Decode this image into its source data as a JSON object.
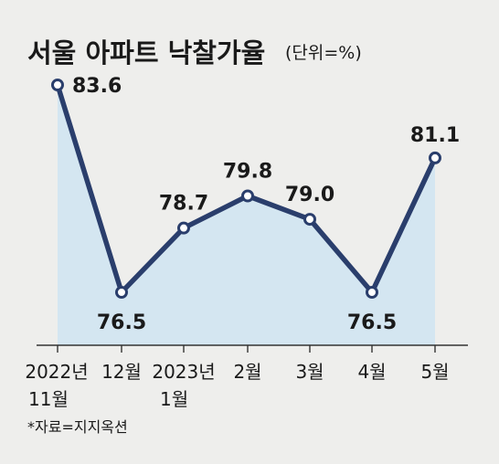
{
  "chart_data": {
    "type": "area",
    "title": "서울 아파트 낙찰가율",
    "unit": "(단위=%)",
    "categories": [
      [
        "2022년",
        "11월"
      ],
      [
        "12월"
      ],
      [
        "2023년",
        "1월"
      ],
      [
        "2월"
      ],
      [
        "3월"
      ],
      [
        "4월"
      ],
      [
        "5월"
      ]
    ],
    "values": [
      83.6,
      76.5,
      78.7,
      79.8,
      79.0,
      76.5,
      81.1
    ],
    "value_labels": [
      "83.6",
      "76.5",
      "78.7",
      "79.8",
      "79.0",
      "76.5",
      "81.1"
    ],
    "label_positions": [
      "right",
      "below",
      "above",
      "above",
      "above",
      "below",
      "above"
    ],
    "ylim": [
      74,
      84.5
    ],
    "grid": false,
    "source": "*자료=지지옥션",
    "colors": {
      "line": "#2a3e6c",
      "fill": "#d4e6f1",
      "text": "#1a1a1a"
    }
  }
}
